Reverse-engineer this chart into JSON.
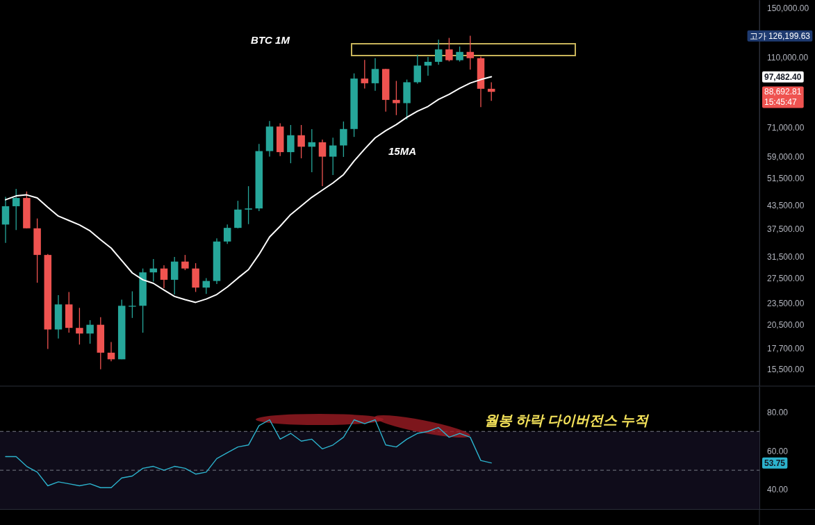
{
  "chart_data": [
    {
      "type": "candlestick",
      "title": "BTC 1M",
      "categories": [
        null,
        null,
        null,
        null,
        null,
        null,
        null,
        null,
        null,
        null,
        null,
        null,
        null,
        null,
        null,
        null,
        null,
        null,
        null,
        null,
        null,
        null,
        null,
        null,
        null,
        null,
        null,
        null,
        null,
        null,
        null,
        null,
        null,
        null,
        null,
        null,
        null,
        null,
        null,
        null,
        null,
        null,
        null,
        null,
        null,
        null,
        null
      ],
      "ohlc": [
        [
          38500,
          45800,
          34300,
          43200
        ],
        [
          43200,
          48200,
          37200,
          45500
        ],
        [
          45500,
          47400,
          37600,
          37600
        ],
        [
          37600,
          40000,
          26700,
          31800
        ],
        [
          31800,
          32000,
          17600,
          19900
        ],
        [
          19900,
          24700,
          18800,
          23300
        ],
        [
          23300,
          25200,
          19500,
          20100
        ],
        [
          20100,
          22800,
          18100,
          19400
        ],
        [
          19400,
          21100,
          18200,
          20500
        ],
        [
          20500,
          21500,
          15500,
          17200
        ],
        [
          17200,
          18400,
          16300,
          16500
        ],
        [
          16500,
          24000,
          16500,
          23100
        ],
        [
          23100,
          25300,
          21400,
          23100
        ],
        [
          23100,
          29200,
          19500,
          28500
        ],
        [
          28500,
          31000,
          26900,
          29200
        ],
        [
          29200,
          29800,
          25800,
          27200
        ],
        [
          27200,
          31400,
          24800,
          30500
        ],
        [
          30500,
          31800,
          28900,
          29200
        ],
        [
          29200,
          30200,
          25200,
          25900
        ],
        [
          25900,
          27500,
          24900,
          27000
        ],
        [
          27000,
          35300,
          26500,
          34600
        ],
        [
          34600,
          38500,
          34100,
          37700
        ],
        [
          37700,
          44700,
          37600,
          42300
        ],
        [
          42300,
          49000,
          38600,
          42600
        ],
        [
          42600,
          63900,
          41900,
          61100
        ],
        [
          61100,
          73800,
          59000,
          71300
        ],
        [
          71300,
          72800,
          59200,
          60700
        ],
        [
          60700,
          72000,
          56600,
          67500
        ],
        [
          67500,
          72000,
          58400,
          62800
        ],
        [
          62800,
          70100,
          53500,
          64600
        ],
        [
          64600,
          65700,
          49000,
          59000
        ],
        [
          59000,
          66500,
          52600,
          63300
        ],
        [
          63300,
          73600,
          58900,
          70200
        ],
        [
          70200,
          99600,
          66800,
          96400
        ],
        [
          96400,
          108400,
          90500,
          93600
        ],
        [
          93600,
          109600,
          89300,
          102400
        ],
        [
          102400,
          102500,
          78300,
          84300
        ],
        [
          84300,
          95000,
          76600,
          82600
        ],
        [
          82600,
          95800,
          74500,
          94200
        ],
        [
          94200,
          112000,
          93400,
          104600
        ],
        [
          104600,
          110500,
          98200,
          107100
        ],
        [
          107100,
          123200,
          105100,
          115800
        ],
        [
          115800,
          124500,
          107400,
          108200
        ],
        [
          108200,
          117900,
          107300,
          114000
        ],
        [
          114000,
          126199.63,
          102000,
          109600
        ],
        [
          109600,
          110700,
          80600,
          90400
        ],
        [
          90400,
          94200,
          83800,
          88692.81
        ]
      ],
      "colors": [
        "#26a69a",
        "#26a69a",
        "#ef5350",
        "#ef5350",
        "#ef5350",
        "#26a69a",
        "#ef5350",
        "#ef5350",
        "#26a69a",
        "#ef5350",
        "#ef5350",
        "#26a69a",
        "#26a69a",
        "#26a69a",
        "#26a69a",
        "#ef5350",
        "#26a69a",
        "#ef5350",
        "#ef5350",
        "#26a69a",
        "#26a69a",
        "#26a69a",
        "#26a69a",
        "#26a69a",
        "#26a69a",
        "#26a69a",
        "#ef5350",
        "#26a69a",
        "#ef5350",
        "#26a69a",
        "#ef5350",
        "#26a69a",
        "#26a69a",
        "#26a69a",
        "#ef5350",
        "#26a69a",
        "#ef5350",
        "#ef5350",
        "#26a69a",
        "#26a69a",
        "#26a69a",
        "#26a69a",
        "#ef5350",
        "#26a69a",
        "#ef5350",
        "#ef5350",
        "#ef5350"
      ],
      "series": [
        {
          "type": "line",
          "name": "15MA",
          "color": "#ffffff",
          "values": [
            45000,
            46100,
            46400,
            45500,
            42900,
            40600,
            39500,
            38400,
            37000,
            35000,
            33200,
            30700,
            28400,
            27200,
            26600,
            25500,
            24500,
            24000,
            23600,
            24100,
            24800,
            26000,
            27500,
            29000,
            31900,
            35600,
            38100,
            41000,
            43300,
            45700,
            47800,
            50000,
            52700,
            57400,
            61900,
            66400,
            69500,
            72200,
            75600,
            78500,
            80900,
            84600,
            87300,
            90700,
            93700,
            95800,
            97482.4
          ]
        }
      ],
      "ylim": [
        14000,
        158000
      ],
      "yticks": [
        {
          "value": 150000,
          "label": "150,000.00"
        },
        {
          "value": 110000,
          "label": "110,000.00"
        },
        {
          "value": 71000,
          "label": "71,000.00"
        },
        {
          "value": 59000,
          "label": "59,000.00"
        },
        {
          "value": 51500,
          "label": "51,500.00"
        },
        {
          "value": 43500,
          "label": "43,500.00"
        },
        {
          "value": 37500,
          "label": "37,500.00"
        },
        {
          "value": 31500,
          "label": "31,500.00"
        },
        {
          "value": 27500,
          "label": "27,500.00"
        },
        {
          "value": 23500,
          "label": "23,500.00"
        },
        {
          "value": 20500,
          "label": "20,500.00"
        },
        {
          "value": 17700,
          "label": "17,700.00"
        },
        {
          "value": 15500,
          "label": "15,500.00"
        }
      ],
      "log": true,
      "tick_labels": "y",
      "annotations": [
        "고가 126,199.63",
        "97,482.40",
        "88,692.81",
        "15:45:47"
      ]
    },
    {
      "type": "line",
      "categories": [
        null,
        null,
        null,
        null,
        null,
        null,
        null,
        null,
        null,
        null,
        null,
        null,
        null,
        null,
        null,
        null,
        null,
        null,
        null,
        null,
        null,
        null,
        null,
        null,
        null,
        null,
        null,
        null,
        null,
        null,
        null,
        null,
        null,
        null,
        null,
        null,
        null,
        null,
        null,
        null,
        null,
        null,
        null,
        null,
        null,
        null,
        null
      ],
      "series": [
        {
          "color": "#2cb2cc",
          "values": [
            57,
            57,
            52,
            49,
            42,
            44,
            43,
            42,
            43,
            41,
            41,
            46,
            47,
            51,
            52,
            50,
            52,
            51,
            48,
            49,
            56,
            59,
            62,
            63,
            73,
            76,
            66,
            69,
            65,
            66,
            61,
            63,
            67,
            76,
            74,
            76,
            63,
            62,
            66,
            69,
            70,
            72,
            67,
            69,
            67,
            55,
            53.75
          ]
        }
      ],
      "ylim": [
        30,
        93
      ],
      "yticks": [
        {
          "value": 80,
          "label": "80.00"
        },
        {
          "value": 60,
          "label": "60.00"
        },
        {
          "value": 40,
          "label": "40.00"
        }
      ],
      "tick_labels": "y",
      "bands": [
        {
          "axis": "y",
          "from": 30,
          "to": 70,
          "color": "#0f0c1a"
        }
      ],
      "ref_lines": [
        {
          "axis": "y",
          "value": 70,
          "color": "#787b86",
          "line_style": "dashed"
        },
        {
          "axis": "y",
          "value": 50,
          "color": "#787b86",
          "line_style": "dashed"
        }
      ],
      "annotations": [
        "월봉 하락 다이버전스 누적",
        "53.75"
      ]
    }
  ]
}
